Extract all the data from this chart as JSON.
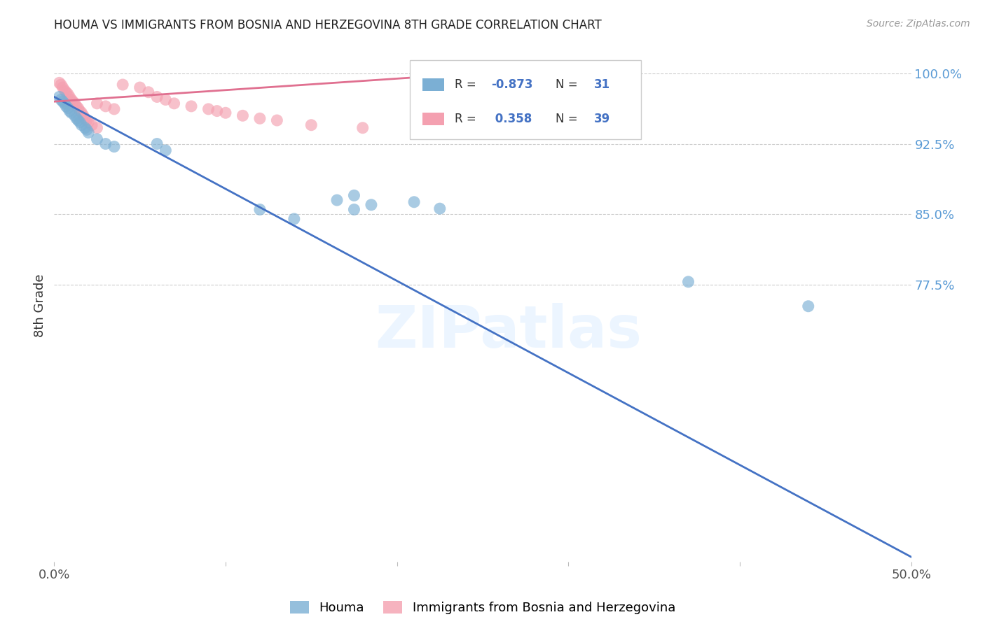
{
  "title": "HOUMA VS IMMIGRANTS FROM BOSNIA AND HERZEGOVINA 8TH GRADE CORRELATION CHART",
  "source": "Source: ZipAtlas.com",
  "ylabel": "8th Grade",
  "xlim": [
    0.0,
    0.5
  ],
  "ylim": [
    0.48,
    1.025
  ],
  "yticks_right": [
    1.0,
    0.925,
    0.85,
    0.775
  ],
  "ytick_labels_right": [
    "100.0%",
    "92.5%",
    "85.0%",
    "77.5%"
  ],
  "xticks": [
    0.0,
    0.1,
    0.2,
    0.3,
    0.4,
    0.5
  ],
  "xtick_labels": [
    "0.0%",
    "",
    "",
    "",
    "",
    "50.0%"
  ],
  "blue_color": "#7BAFD4",
  "pink_color": "#F4A0B0",
  "blue_line_color": "#4472C4",
  "pink_line_color": "#E07090",
  "legend_R_blue": "-0.873",
  "legend_N_blue": "31",
  "legend_R_pink": "0.358",
  "legend_N_pink": "39",
  "legend_label_blue": "Houma",
  "legend_label_pink": "Immigrants from Bosnia and Herzegovina",
  "blue_scatter_x": [
    0.003,
    0.004,
    0.005,
    0.006,
    0.007,
    0.008,
    0.009,
    0.01,
    0.012,
    0.013,
    0.014,
    0.015,
    0.016,
    0.018,
    0.019,
    0.02,
    0.025,
    0.03,
    0.035,
    0.06,
    0.065,
    0.12,
    0.14,
    0.21,
    0.225,
    0.165,
    0.175,
    0.175,
    0.185,
    0.37,
    0.44
  ],
  "blue_scatter_y": [
    0.975,
    0.972,
    0.97,
    0.968,
    0.965,
    0.963,
    0.96,
    0.958,
    0.955,
    0.952,
    0.95,
    0.948,
    0.945,
    0.942,
    0.94,
    0.937,
    0.93,
    0.925,
    0.922,
    0.925,
    0.918,
    0.855,
    0.845,
    0.863,
    0.856,
    0.865,
    0.855,
    0.87,
    0.86,
    0.778,
    0.752
  ],
  "pink_scatter_x": [
    0.003,
    0.004,
    0.005,
    0.006,
    0.007,
    0.008,
    0.009,
    0.01,
    0.011,
    0.012,
    0.013,
    0.014,
    0.015,
    0.016,
    0.017,
    0.018,
    0.019,
    0.02,
    0.022,
    0.025,
    0.04,
    0.05,
    0.055,
    0.06,
    0.065,
    0.07,
    0.08,
    0.09,
    0.1,
    0.11,
    0.12,
    0.13,
    0.15,
    0.18,
    0.025,
    0.03,
    0.035,
    0.095,
    0.26
  ],
  "pink_scatter_y": [
    0.99,
    0.988,
    0.985,
    0.982,
    0.98,
    0.978,
    0.975,
    0.972,
    0.97,
    0.968,
    0.965,
    0.963,
    0.96,
    0.958,
    0.955,
    0.952,
    0.95,
    0.948,
    0.945,
    0.942,
    0.988,
    0.985,
    0.98,
    0.975,
    0.972,
    0.968,
    0.965,
    0.962,
    0.958,
    0.955,
    0.952,
    0.95,
    0.945,
    0.942,
    0.968,
    0.965,
    0.962,
    0.96,
    0.975
  ],
  "blue_line_x0": 0.0,
  "blue_line_y0": 0.975,
  "blue_line_x1": 0.5,
  "blue_line_y1": 0.485,
  "pink_line_x0": 0.0,
  "pink_line_y0": 0.97,
  "pink_line_x1": 0.27,
  "pink_line_y1": 1.003,
  "watermark": "ZIPatlas",
  "background_color": "#FFFFFF",
  "grid_color": "#CCCCCC"
}
